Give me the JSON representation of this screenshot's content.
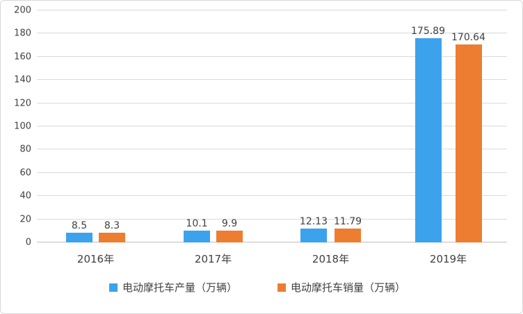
{
  "chart_data": {
    "type": "bar",
    "title": "",
    "xlabel": "",
    "ylabel": "",
    "categories": [
      "2016年",
      "2017年",
      "2018年",
      "2019年"
    ],
    "series": [
      {
        "name": "电动摩托车产量（万辆）",
        "color": "#3da2ec",
        "values": [
          8.5,
          10.1,
          12.13,
          175.89
        ]
      },
      {
        "name": "电动摩托车销量（万辆）",
        "color": "#ed7d31",
        "values": [
          8.3,
          9.9,
          11.79,
          170.64
        ]
      }
    ],
    "data_labels": [
      "8.5",
      "8.3",
      "10.1",
      "9.9",
      "12.13",
      "11.79",
      "175.89",
      "170.64"
    ],
    "ylim": [
      0,
      200
    ],
    "yticks": [
      0,
      20,
      40,
      60,
      80,
      100,
      120,
      140,
      160,
      180,
      200
    ],
    "grid": true,
    "gridline_color": "#d9d9d9",
    "axis_text_color": "#404040",
    "legend_position": "bottom"
  }
}
